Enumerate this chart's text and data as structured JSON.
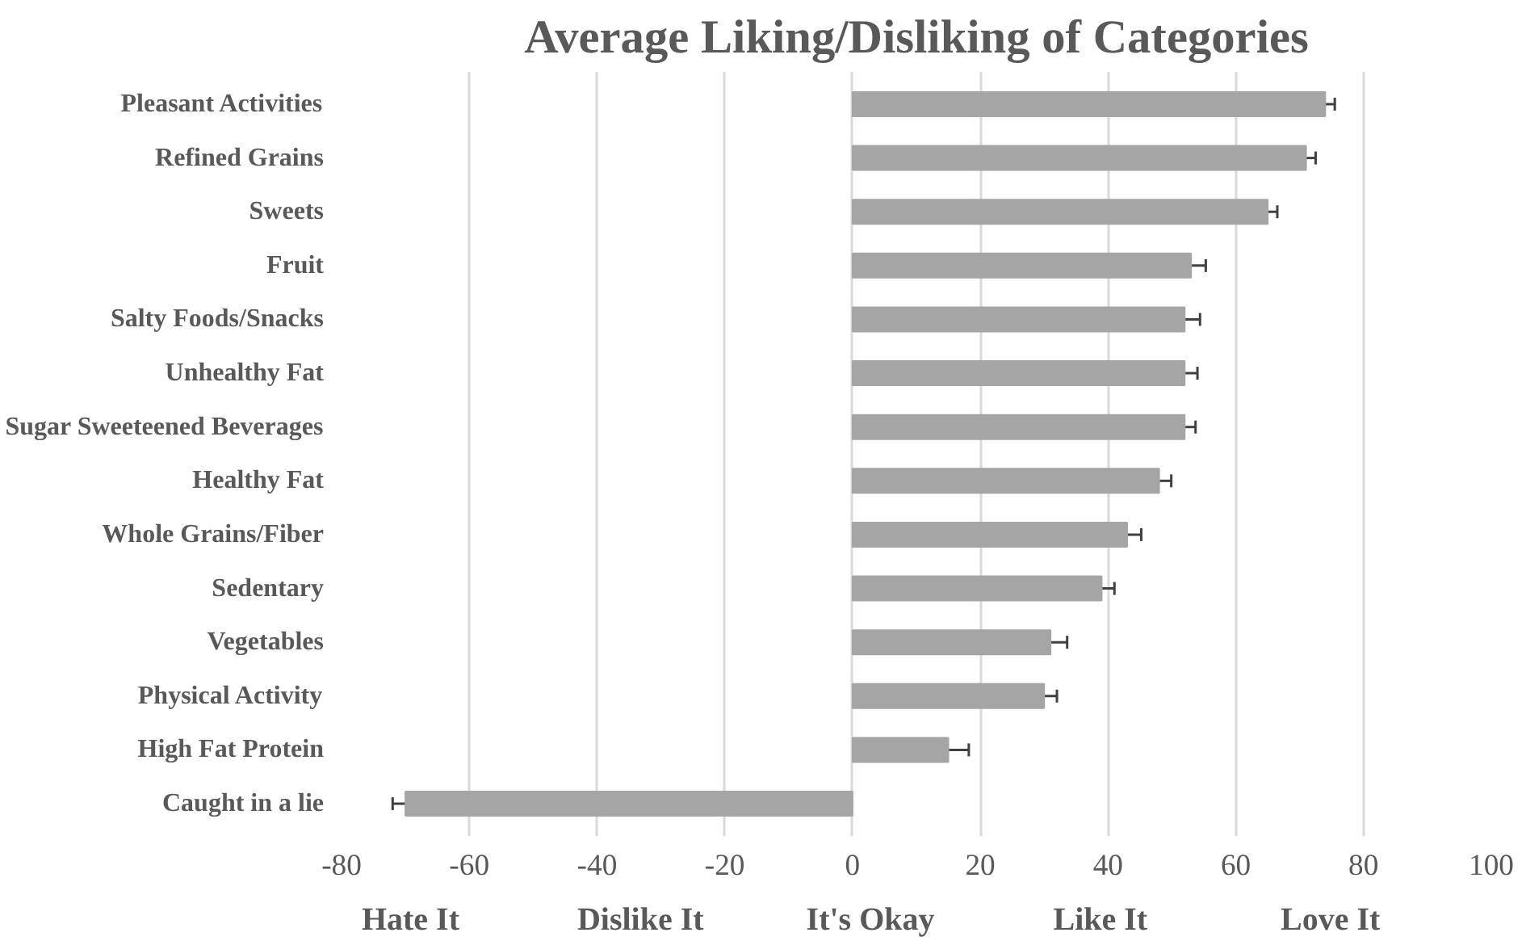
{
  "chart_data": {
    "type": "bar",
    "orientation": "horizontal",
    "title": "Average Liking/Disliking of Categories",
    "categories": [
      "Pleasant Activities",
      "Refined Grains",
      "Sweets",
      "Fruit",
      "Salty Foods/Snacks",
      "Unhealthy Fat",
      "Sugar Sweeteened Beverages",
      "Healthy Fat",
      "Whole Grains/Fiber",
      "Sedentary",
      "Vegetables",
      "Physical Activity",
      "High Fat Protein",
      "Caught in a lie"
    ],
    "values": [
      74,
      71,
      65,
      53,
      52,
      52,
      52,
      48,
      43,
      39,
      31,
      30,
      15,
      -70
    ],
    "errors": [
      1.5,
      1.5,
      1.5,
      2.3,
      2.4,
      2,
      1.7,
      1.9,
      2.2,
      2,
      2.6,
      2,
      3.2,
      2
    ],
    "color": "#a5a5a5",
    "xlim": [
      -80,
      100
    ],
    "xticks": [
      -80,
      -60,
      -40,
      -20,
      0,
      20,
      40,
      60,
      80,
      100
    ],
    "grid": "x",
    "annotations": [
      "Hate It",
      "Dislike It",
      "It's Okay",
      "Like It",
      "Love It"
    ]
  }
}
